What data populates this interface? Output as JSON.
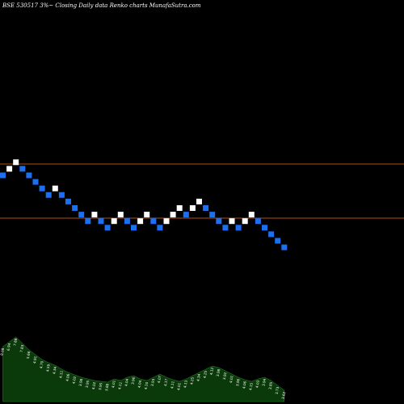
{
  "header": {
    "text": "BSE 530517 3%~  Closing Daily data  Renko  charts MunafaSutra.com"
  },
  "colors": {
    "background": "#000000",
    "up_brick": "#ffffff",
    "down_brick": "#1e6ff0",
    "reference_line": "#b0501a",
    "volume_fill": "#0a3a0a"
  },
  "chart_data": {
    "type": "renko",
    "grid": false,
    "legend": "none",
    "brick_size_label": "3%",
    "horizontal_levels": [
      "upper",
      "lower"
    ],
    "bricks": [
      {
        "dir": "down",
        "level": 0
      },
      {
        "dir": "up",
        "level": 1
      },
      {
        "dir": "up",
        "level": 2
      },
      {
        "dir": "down",
        "level": 1
      },
      {
        "dir": "down",
        "level": 0
      },
      {
        "dir": "down",
        "level": -1
      },
      {
        "dir": "down",
        "level": -2
      },
      {
        "dir": "down",
        "level": -3
      },
      {
        "dir": "up",
        "level": -2
      },
      {
        "dir": "down",
        "level": -3
      },
      {
        "dir": "down",
        "level": -4
      },
      {
        "dir": "down",
        "level": -5
      },
      {
        "dir": "down",
        "level": -6
      },
      {
        "dir": "down",
        "level": -7
      },
      {
        "dir": "up",
        "level": -6
      },
      {
        "dir": "down",
        "level": -7
      },
      {
        "dir": "down",
        "level": -8
      },
      {
        "dir": "up",
        "level": -7
      },
      {
        "dir": "up",
        "level": -6
      },
      {
        "dir": "down",
        "level": -7
      },
      {
        "dir": "down",
        "level": -8
      },
      {
        "dir": "up",
        "level": -7
      },
      {
        "dir": "up",
        "level": -6
      },
      {
        "dir": "down",
        "level": -7
      },
      {
        "dir": "down",
        "level": -8
      },
      {
        "dir": "up",
        "level": -7
      },
      {
        "dir": "up",
        "level": -6
      },
      {
        "dir": "up",
        "level": -5
      },
      {
        "dir": "down",
        "level": -6
      },
      {
        "dir": "up",
        "level": -5
      },
      {
        "dir": "up",
        "level": -4
      },
      {
        "dir": "down",
        "level": -5
      },
      {
        "dir": "down",
        "level": -6
      },
      {
        "dir": "down",
        "level": -7
      },
      {
        "dir": "down",
        "level": -8
      },
      {
        "dir": "up",
        "level": -7
      },
      {
        "dir": "down",
        "level": -8
      },
      {
        "dir": "up",
        "level": -7
      },
      {
        "dir": "up",
        "level": -6
      },
      {
        "dir": "down",
        "level": -7
      },
      {
        "dir": "down",
        "level": -8
      },
      {
        "dir": "down",
        "level": -9
      },
      {
        "dir": "down",
        "level": -10
      },
      {
        "dir": "down",
        "level": -11
      }
    ],
    "volume_profile": [
      68,
      74,
      80,
      72,
      64,
      58,
      52,
      48,
      45,
      40,
      36,
      33,
      30,
      28,
      26,
      25,
      24,
      28,
      26,
      30,
      32,
      28,
      26,
      30,
      34,
      30,
      27,
      25,
      28,
      32,
      36,
      40,
      44,
      42,
      38,
      34,
      30,
      27,
      25,
      28,
      30,
      26,
      20,
      14
    ],
    "volume_labels": [
      "8.08",
      "6.94",
      "7.88",
      "7.83",
      "5.66",
      "4.91",
      "4.70",
      "4.59",
      "4.34",
      "4.11",
      "4.06",
      "4.02",
      "3.98",
      "3.95",
      "4.02",
      "3.95",
      "3.88",
      "4.01",
      "4.11",
      "4.04",
      "3.96",
      "4.04",
      "4.10",
      "3.93",
      "4.07",
      "4.17",
      "4.11",
      "4.01",
      "4.13",
      "4.25",
      "4.34",
      "4.25",
      "4.12",
      "3.98",
      "3.92",
      "4.01",
      "3.96",
      "4.06",
      "4.15",
      "4.03",
      "3.94",
      "3.85",
      "3.73",
      "3.62"
    ]
  }
}
